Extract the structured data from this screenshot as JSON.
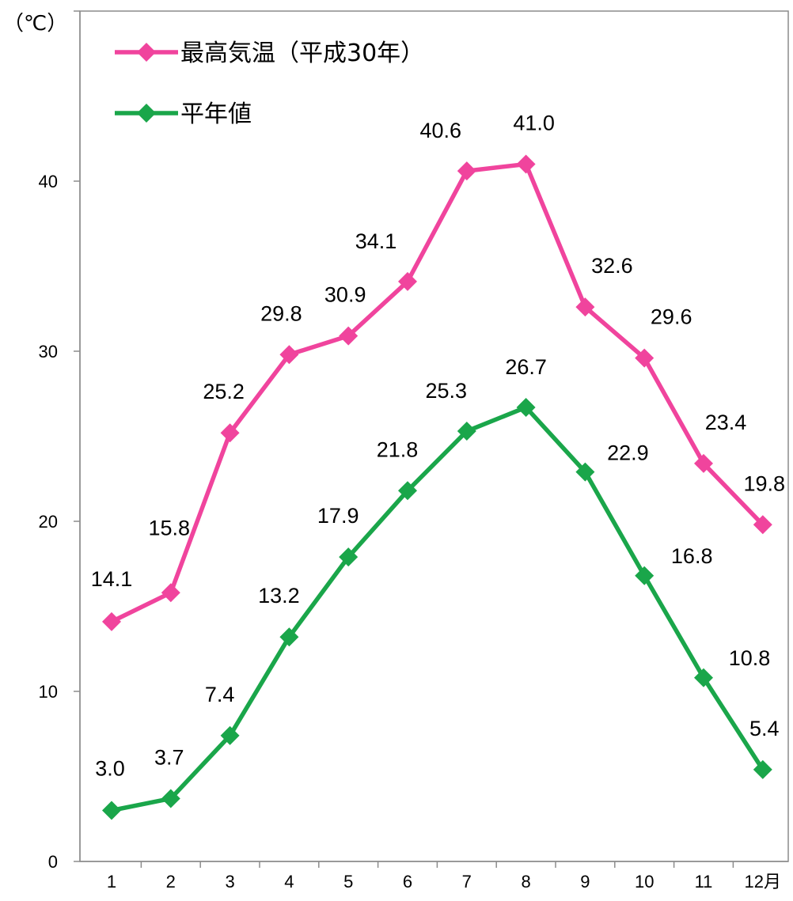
{
  "chart_data": {
    "type": "line",
    "title": "",
    "ylabel": "（℃）",
    "xlabel": "",
    "x_unit_suffix": "月",
    "categories": [
      "1",
      "2",
      "3",
      "4",
      "5",
      "6",
      "7",
      "8",
      "9",
      "10",
      "11",
      "12"
    ],
    "ylim": [
      0,
      50
    ],
    "yticks": [
      0,
      10,
      20,
      30,
      40
    ],
    "grid": false,
    "legend_position": "top-left",
    "series": [
      {
        "name": "最高気温（平成30年）",
        "color": "#f0449d",
        "marker": "diamond",
        "values": [
          14.1,
          15.8,
          25.2,
          29.8,
          30.9,
          34.1,
          40.6,
          41.0,
          32.6,
          29.6,
          23.4,
          19.8
        ],
        "labels": [
          "14.1",
          "15.8",
          "25.2",
          "29.8",
          "30.9",
          "34.1",
          "40.6",
          "41.0",
          "32.6",
          "29.6",
          "23.4",
          "19.8"
        ]
      },
      {
        "name": "平年値",
        "color": "#1aa64a",
        "marker": "diamond",
        "values": [
          3.0,
          3.7,
          7.4,
          13.2,
          17.9,
          21.8,
          25.3,
          26.7,
          22.9,
          16.8,
          10.8,
          5.4
        ],
        "labels": [
          "3.0",
          "3.7",
          "7.4",
          "13.2",
          "17.9",
          "21.8",
          "25.3",
          "26.7",
          "22.9",
          "16.8",
          "10.8",
          "5.4"
        ]
      }
    ]
  }
}
